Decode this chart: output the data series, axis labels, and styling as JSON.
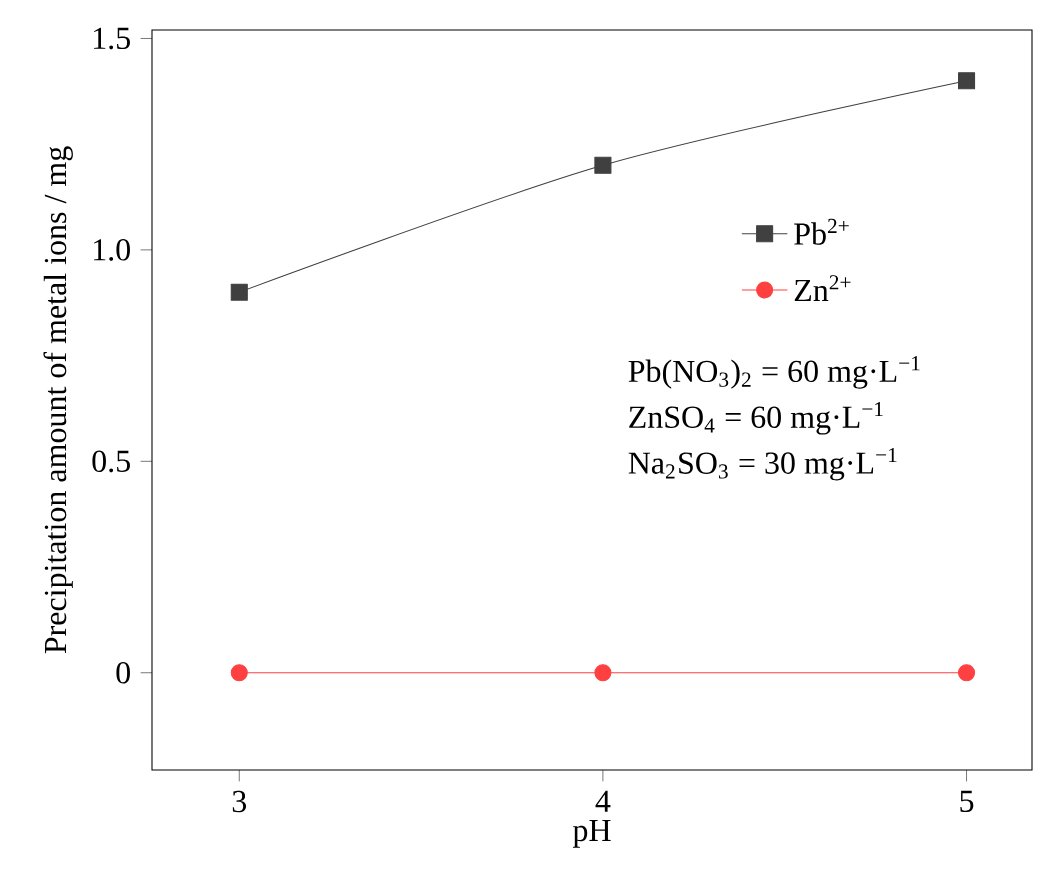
{
  "chart_data": {
    "type": "line",
    "xlabel": "pH",
    "ylabel": "Precipitation amount of metal ions / mg",
    "x": [
      3,
      4,
      5
    ],
    "series": [
      {
        "name": "Pb$^{2+}$",
        "color": "#404040",
        "values": [
          0.9,
          1.2,
          1.4
        ],
        "marker": "square"
      },
      {
        "name": "Zn$^{2+}$",
        "color": "#ff4040",
        "values": [
          0,
          0,
          0
        ],
        "marker": "circle"
      }
    ],
    "xlim": [
      2.76,
      5.18
    ],
    "ylim": [
      -0.23,
      1.52
    ],
    "xticks": [
      3,
      4,
      5
    ],
    "yticks": [
      0,
      0.5,
      {
        "value": 1,
        "label": "1.0"
      },
      1.5
    ],
    "annotations": [
      "Pb(NO$_{3}$)$_{2}$ = 60 mg·L$^{−1}$",
      "ZnSO$_{4}$ = 60 mg·L$^{−1}$",
      "Na$_{2}$SO$_{3}$ = 30 mg·L$^{−1}$"
    ],
    "legend": "right",
    "grid": false,
    "line_style": "solid"
  }
}
